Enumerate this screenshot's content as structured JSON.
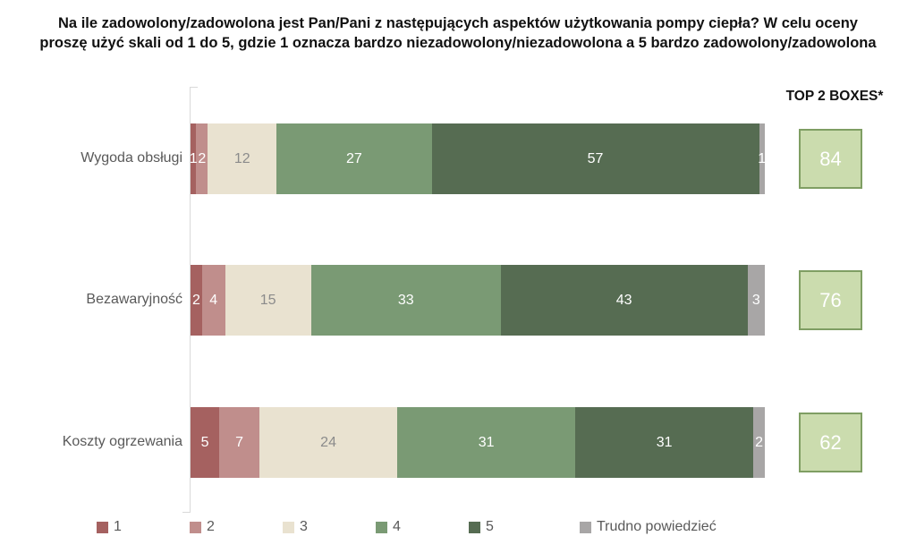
{
  "title": {
    "line1": "Na ile zadowolony/zadowolona jest Pan/Pani z następujących aspektów użytkowania pompy ciepła? W celu oceny",
    "line2": "proszę użyć skali od 1 do 5, gdzie 1 oznacza bardzo niezadowolony/niezadowolona a 5 bardzo zadowolony/zadowolona"
  },
  "top2": {
    "header": "TOP 2 BOXES*",
    "values": [
      84,
      76,
      62
    ]
  },
  "chart_data": {
    "type": "bar",
    "stacked": true,
    "orientation": "horizontal",
    "unit": "percent",
    "xlim": [
      0,
      100
    ],
    "legend_position": "bottom",
    "categories": [
      "Wygoda obsługi",
      "Bezawaryjność",
      "Koszty ogrzewania"
    ],
    "series": [
      {
        "name": "1",
        "color": "#a56160",
        "label_color": "#ffffff",
        "values": [
          1,
          2,
          5
        ]
      },
      {
        "name": "2",
        "color": "#c08e8c",
        "label_color": "#ffffff",
        "values": [
          2,
          4,
          7
        ]
      },
      {
        "name": "3",
        "color": "#e9e2d0",
        "label_color": "#8b8b8b",
        "values": [
          12,
          15,
          24
        ]
      },
      {
        "name": "4",
        "color": "#7a9a74",
        "label_color": "#ffffff",
        "values": [
          27,
          33,
          31
        ]
      },
      {
        "name": "5",
        "color": "#566c52",
        "label_color": "#ffffff",
        "values": [
          57,
          43,
          31
        ]
      },
      {
        "name": "Trudno powiedzieć",
        "color": "#a8a6a6",
        "label_color": "#ffffff",
        "values": [
          1,
          3,
          2
        ]
      }
    ],
    "top2_boxes": [
      84,
      76,
      62
    ]
  },
  "colors": {
    "top2_fill": "#cbdcae",
    "top2_border": "#7f9e63",
    "top2_text": "#ffffff",
    "axis": "#d9d9d9",
    "category_text": "#595959",
    "legend_text": "#595959",
    "title_text": "#111111"
  }
}
